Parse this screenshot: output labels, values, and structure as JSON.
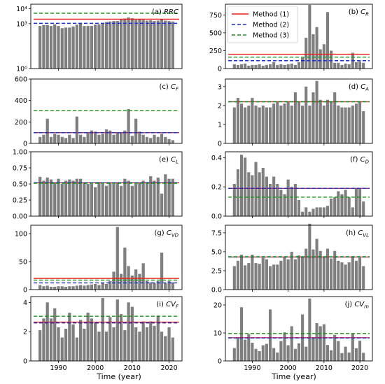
{
  "xlabel": "Time (year)",
  "years": [
    1985,
    1986,
    1987,
    1988,
    1989,
    1990,
    1991,
    1992,
    1993,
    1994,
    1995,
    1996,
    1997,
    1998,
    1999,
    2000,
    2001,
    2002,
    2003,
    2004,
    2005,
    2006,
    2007,
    2008,
    2009,
    2010,
    2011,
    2012,
    2013,
    2014,
    2015,
    2016,
    2017,
    2018,
    2019,
    2020,
    2021
  ],
  "xticks": [
    1990,
    2000,
    2010,
    2020
  ],
  "legend": {
    "panel": 1,
    "items": [
      {
        "label": "Method (1)",
        "color": "#e8201e",
        "dash": "solid"
      },
      {
        "label": "Method (2)",
        "color": "#1f2fbf",
        "dash": "dashed"
      },
      {
        "label": "Method (3)",
        "color": "#1e8c1e",
        "dash": "dashed"
      }
    ]
  },
  "colors": {
    "bar": "#7f7f7f",
    "m1": "#e8201e",
    "m2": "#1f2fbf",
    "m3": "#1e8c1e",
    "purple": "#800080",
    "orange": "#c07a20"
  },
  "chart_data": [
    {
      "type": "bar",
      "title": "(a) RRC",
      "label_main": "(a) ",
      "label_sym": "RRC",
      "label_sub": "",
      "scale": "log",
      "ylim": [
        1,
        20000
      ],
      "yticks": [
        1,
        1000,
        10000
      ],
      "ytick_labels": [
        "10⁰",
        "10³",
        "10⁴"
      ],
      "values": [
        700,
        800,
        800,
        700,
        900,
        700,
        500,
        550,
        550,
        650,
        850,
        1000,
        700,
        700,
        700,
        850,
        900,
        1100,
        1300,
        1400,
        1500,
        1500,
        2000,
        2200,
        2600,
        2300,
        1800,
        1900,
        1800,
        1600,
        1700,
        1500,
        1600,
        1900,
        1600,
        1500,
        1400
      ],
      "lines": [
        {
          "method": 1,
          "value": 2000
        },
        {
          "method": 2,
          "value": 1050
        },
        {
          "method": 3,
          "value": 5000
        }
      ]
    },
    {
      "type": "bar",
      "title": "(b) CR",
      "label_main": "(b) ",
      "label_sym": "C",
      "label_sub": "R",
      "scale": "linear",
      "ylim": [
        0,
        900
      ],
      "yticks": [
        0,
        250,
        500,
        750
      ],
      "ytick_labels": [
        "0",
        "250",
        "500",
        "750"
      ],
      "values": [
        60,
        50,
        60,
        70,
        40,
        50,
        50,
        60,
        40,
        50,
        60,
        90,
        50,
        60,
        50,
        60,
        70,
        50,
        90,
        150,
        430,
        890,
        480,
        580,
        270,
        340,
        790,
        250,
        80,
        80,
        50,
        70,
        60,
        220,
        90,
        100,
        80
      ],
      "lines": [
        {
          "method": 1,
          "value": 200
        },
        {
          "method": 2,
          "value": 110
        },
        {
          "method": 3,
          "value": 160
        }
      ]
    },
    {
      "type": "bar",
      "title": "(c) CF",
      "label_main": "(c) ",
      "label_sym": "C",
      "label_sub": "F",
      "scale": "linear",
      "ylim": [
        0,
        600
      ],
      "yticks": [
        0,
        200,
        400,
        600
      ],
      "ytick_labels": [
        "0",
        "200",
        "400",
        "600"
      ],
      "values": [
        60,
        80,
        230,
        60,
        90,
        80,
        60,
        50,
        80,
        50,
        250,
        80,
        60,
        100,
        120,
        110,
        80,
        90,
        130,
        120,
        80,
        100,
        100,
        120,
        320,
        70,
        230,
        110,
        80,
        60,
        50,
        80,
        60,
        90,
        60,
        40,
        30
      ],
      "lines": [
        {
          "method": 1,
          "value": 100
        },
        {
          "method": 2,
          "value": 100
        },
        {
          "method": 3,
          "value": 305
        }
      ]
    },
    {
      "type": "bar",
      "title": "(d) CA",
      "label_main": "(d) ",
      "label_sym": "C",
      "label_sub": "A",
      "scale": "linear",
      "ylim": [
        0,
        3.4
      ],
      "yticks": [
        0,
        1,
        2,
        3
      ],
      "ytick_labels": [
        "0",
        "1",
        "2",
        "3"
      ],
      "values": [
        1.9,
        2.4,
        2.1,
        1.9,
        2.0,
        2.4,
        2.0,
        1.9,
        2.0,
        1.9,
        1.9,
        2.1,
        2.2,
        2.0,
        2.1,
        2.2,
        2.0,
        2.7,
        2.2,
        2.0,
        3.0,
        2.0,
        2.7,
        3.3,
        2.3,
        2.0,
        2.3,
        2.2,
        2.7,
        2.0,
        1.9,
        1.9,
        1.9,
        2.0,
        2.1,
        2.2,
        1.7
      ],
      "lines": [
        {
          "method": 1,
          "value": 2.2
        },
        {
          "method": 2,
          "value": 2.2
        },
        {
          "method": 3,
          "value": 2.2
        }
      ]
    },
    {
      "type": "bar",
      "title": "(e) CL",
      "label_main": "(e) ",
      "label_sym": "C",
      "label_sub": "L",
      "scale": "linear",
      "ylim": [
        0,
        1.0
      ],
      "yticks": [
        0,
        0.25,
        0.5,
        0.75,
        1.0
      ],
      "ytick_labels": [
        "0.00",
        "0.25",
        "0.50",
        "0.75",
        "1.00"
      ],
      "values": [
        0.61,
        0.55,
        0.6,
        0.57,
        0.52,
        0.58,
        0.5,
        0.55,
        0.57,
        0.55,
        0.58,
        0.58,
        0.52,
        0.5,
        0.5,
        0.45,
        0.53,
        0.5,
        0.47,
        0.52,
        0.5,
        0.52,
        0.47,
        0.58,
        0.55,
        0.47,
        0.5,
        0.52,
        0.55,
        0.53,
        0.62,
        0.55,
        0.6,
        0.35,
        0.65,
        0.58,
        0.58
      ],
      "lines": [
        {
          "method": 1,
          "value": 0.52
        },
        {
          "method": 2,
          "value": 0.52
        },
        {
          "method": 3,
          "value": 0.51
        }
      ]
    },
    {
      "type": "bar",
      "title": "(f) CD",
      "label_main": "(f) ",
      "label_sym": "C",
      "label_sub": "D",
      "scale": "linear",
      "ylim": [
        0,
        0.44
      ],
      "yticks": [
        0,
        0.2,
        0.4
      ],
      "ytick_labels": [
        "0.0",
        "0.2",
        "0.4"
      ],
      "values": [
        0.22,
        0.32,
        0.42,
        0.4,
        0.3,
        0.28,
        0.37,
        0.3,
        0.33,
        0.27,
        0.22,
        0.27,
        0.22,
        0.18,
        0.15,
        0.25,
        0.2,
        0.22,
        0.11,
        0.03,
        0.06,
        0.03,
        0.05,
        0.06,
        0.06,
        0.06,
        0.07,
        0.12,
        0.13,
        0.17,
        0.15,
        0.18,
        0.13,
        0.06,
        0.19,
        0.19,
        0.1
      ],
      "lines": [
        {
          "method": 1,
          "value": 0.19
        },
        {
          "method": 2,
          "value": 0.19
        },
        {
          "method": 3,
          "value": 0.13
        }
      ]
    },
    {
      "type": "bar",
      "title": "(g) CVD",
      "label_main": "(g) ",
      "label_sym": "C",
      "label_sub": "VD",
      "scale": "linear",
      "ylim": [
        0,
        115
      ],
      "yticks": [
        0,
        50,
        100
      ],
      "ytick_labels": [
        "0",
        "50",
        "100"
      ],
      "values": [
        8,
        6,
        7,
        5,
        5,
        6,
        6,
        5,
        6,
        6,
        7,
        8,
        7,
        8,
        9,
        10,
        8,
        12,
        10,
        15,
        32,
        112,
        28,
        75,
        42,
        25,
        36,
        28,
        47,
        15,
        13,
        12,
        15,
        66,
        12,
        15,
        13
      ],
      "lines": [
        {
          "method": 1,
          "value": 20
        },
        {
          "method": 2,
          "value": 12
        },
        {
          "method": 3,
          "value": 17
        }
      ]
    },
    {
      "type": "bar",
      "title": "(h) CVL",
      "label_main": "(h) ",
      "label_sym": "C",
      "label_sub": "VL",
      "scale": "linear",
      "ylim": [
        0,
        8.5
      ],
      "yticks": [
        0,
        2.5,
        5.0,
        7.5
      ],
      "ytick_labels": [
        "0.0",
        "2.5",
        "5.0",
        "7.5"
      ],
      "values": [
        3.1,
        3.8,
        4.6,
        3.2,
        3.5,
        4.6,
        3.5,
        3.4,
        4.2,
        4.0,
        3.1,
        3.3,
        3.3,
        3.8,
        4.3,
        4.0,
        5.0,
        4.0,
        4.5,
        4.3,
        5.4,
        8.7,
        5.3,
        6.7,
        5.1,
        4.4,
        5.4,
        4.1,
        5.1,
        3.8,
        3.6,
        3.3,
        3.6,
        4.4,
        3.8,
        4.2,
        3.1
      ],
      "lines": [
        {
          "method": 1,
          "value": 4.3
        },
        {
          "method": 2,
          "value": 4.3
        },
        {
          "method": 3,
          "value": 4.35
        }
      ]
    },
    {
      "type": "bar",
      "title": "(i) CVF",
      "label_main": "(i) ",
      "label_sym": "CV",
      "label_sub": "F",
      "scale": "linear",
      "ylim": [
        0,
        4.4
      ],
      "yticks": [
        0,
        2,
        4
      ],
      "ytick_labels": [
        "0",
        "2",
        "4"
      ],
      "values": [
        2.1,
        2.9,
        4.0,
        2.9,
        3.6,
        2.3,
        1.6,
        2.2,
        3.3,
        2.5,
        1.6,
        2.8,
        2.2,
        3.3,
        2.9,
        2.6,
        2.0,
        4.3,
        2.0,
        3.0,
        2.3,
        4.2,
        3.2,
        2.1,
        4.0,
        3.7,
        2.3,
        2.0,
        2.7,
        2.3,
        2.7,
        2.4,
        3.1,
        2.0,
        1.7,
        2.3,
        1.6
      ],
      "lines": [
        {
          "method": 1,
          "value": 2.65
        },
        {
          "method": 2,
          "value": 2.6
        },
        {
          "method": 3,
          "value": 3.05
        }
      ]
    },
    {
      "type": "bar",
      "title": "(j) CVm",
      "label_main": "(j) ",
      "label_sym": "CV",
      "label_sub": "m",
      "scale": "linear",
      "ylim": [
        0,
        23
      ],
      "yticks": [
        0,
        10,
        20
      ],
      "ytick_labels": [
        "0",
        "10",
        "20"
      ],
      "values": [
        4.6,
        8.5,
        19.2,
        7.6,
        9.5,
        6.5,
        4.3,
        3.5,
        5.6,
        6.1,
        18.4,
        4.6,
        3.0,
        7.1,
        10.2,
        5.6,
        12.4,
        4.3,
        6.3,
        16.6,
        5.1,
        22.3,
        8.2,
        13.5,
        12.4,
        13.1,
        5.7,
        3.8,
        9.3,
        7.1,
        2.8,
        5.1,
        3.0,
        9.8,
        4.5,
        7.2,
        2.9
      ],
      "lines": [
        {
          "method": 1,
          "value": 8.3
        },
        {
          "method": 2,
          "value": 8.2
        },
        {
          "method": 3,
          "value": 9.8
        }
      ]
    }
  ]
}
